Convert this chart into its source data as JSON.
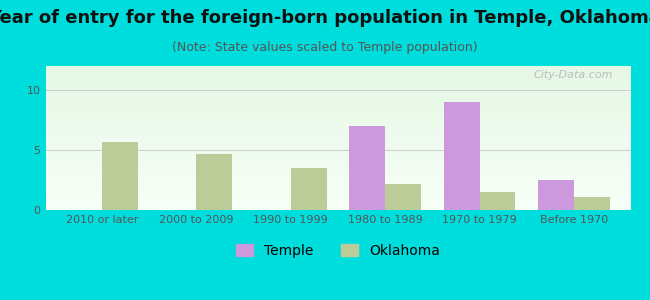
{
  "title": "Year of entry for the foreign-born population in Temple, Oklahoma",
  "subtitle": "(Note: State values scaled to Temple population)",
  "categories": [
    "2010 or later",
    "2000 to 2009",
    "1990 to 1999",
    "1980 to 1989",
    "1970 to 1979",
    "Before 1970"
  ],
  "temple_values": [
    0,
    0,
    0,
    7.0,
    9.0,
    2.5
  ],
  "oklahoma_values": [
    5.7,
    4.7,
    3.5,
    2.2,
    1.5,
    1.1
  ],
  "temple_color": "#cc99dd",
  "oklahoma_color": "#bbcc99",
  "background_color": "#00dddd",
  "ylim": [
    0,
    12
  ],
  "yticks": [
    0,
    5,
    10
  ],
  "bar_width": 0.38,
  "title_fontsize": 13,
  "subtitle_fontsize": 9,
  "legend_fontsize": 10,
  "tick_fontsize": 8,
  "watermark": "City-Data.com"
}
